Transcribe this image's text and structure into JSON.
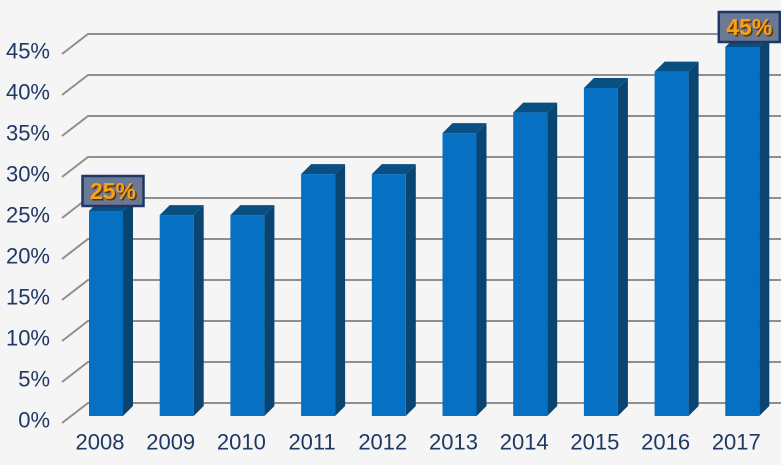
{
  "chart_data": {
    "type": "bar",
    "style": "3d-column",
    "title": "",
    "xlabel": "",
    "ylabel": "",
    "categories": [
      "2008",
      "2009",
      "2010",
      "2011",
      "2012",
      "2013",
      "2014",
      "2015",
      "2016",
      "2017"
    ],
    "series": [
      {
        "name": "percentage",
        "values": [
          25,
          24.5,
          24.5,
          29.5,
          29.5,
          34.5,
          37,
          40,
          42,
          45
        ]
      }
    ],
    "ylim": [
      0,
      45
    ],
    "ytick_step": 5,
    "ytick_labels": [
      "0%",
      "5%",
      "10%",
      "15%",
      "20%",
      "25%",
      "30%",
      "35%",
      "40%",
      "45%"
    ],
    "grid": true,
    "legend": "none",
    "annotations": [
      {
        "category": "2008",
        "value": 25,
        "text": "25%"
      },
      {
        "category": "2017",
        "value": 45,
        "text": "45%"
      }
    ],
    "colors": {
      "background": "#f5f5f6",
      "gridline": "#8f8f8f",
      "axis_label": "#1f3864",
      "bar_front": "#0670c2",
      "bar_top": "#094f82",
      "bar_side": "#0a4571",
      "annotation_box_fill": "#6b7994",
      "annotation_box_border": "#1e3765",
      "annotation_text": "#f9a11b",
      "annotation_text_shadow": "#5c3a00"
    }
  }
}
